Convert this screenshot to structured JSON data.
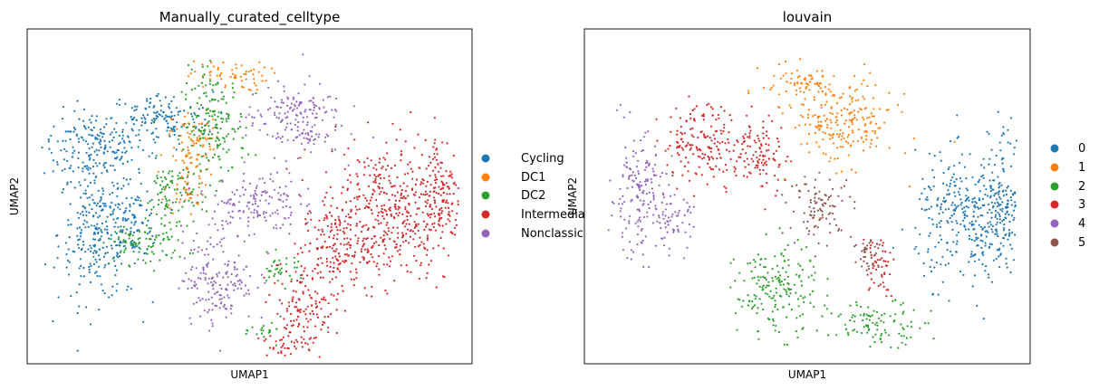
{
  "charts": [
    {
      "title": "Manually_curated_celltype",
      "xlabel": "UMAP1",
      "ylabel": "UMAP2",
      "legend_entries": [
        {
          "label": "Cycling",
          "color": "#1f77b4"
        },
        {
          "label": "DC1",
          "color": "#ff7f0e"
        },
        {
          "label": "DC2",
          "color": "#2ca02c"
        },
        {
          "label": "Intermediate",
          "color": "#d62728"
        },
        {
          "label": "Nonclassical",
          "color": "#9467bd"
        }
      ]
    },
    {
      "title": "louvain",
      "xlabel": "UMAP1",
      "ylabel": "UMAP2",
      "legend_entries": [
        {
          "label": "0",
          "color": "#1f77b4"
        },
        {
          "label": "1",
          "color": "#ff7f0e"
        },
        {
          "label": "2",
          "color": "#2ca02c"
        },
        {
          "label": "3",
          "color": "#d62728"
        },
        {
          "label": "4",
          "color": "#9467bd"
        },
        {
          "label": "5",
          "color": "#8c564b"
        }
      ]
    }
  ],
  "chart_data": [
    {
      "type": "scatter",
      "title": "Manually_curated_celltype",
      "xlabel": "UMAP1",
      "ylabel": "UMAP2",
      "axis_ticks": false,
      "grid": false,
      "legend_placement": "right",
      "series": [
        {
          "name": "Cycling",
          "color": "#1f77b4",
          "regions": [
            [
              1.5,
              6.5,
              1.3,
              1.2
            ],
            [
              1.6,
              3.9,
              1.0,
              2.3
            ],
            [
              2.4,
              4.2,
              0.6,
              1.1
            ],
            [
              3.0,
              7.3,
              1.3,
              0.9
            ]
          ]
        },
        {
          "name": "DC1",
          "color": "#ff7f0e",
          "regions": [
            [
              3.6,
              5.6,
              0.5,
              1.3
            ],
            [
              4.5,
              8.6,
              1.0,
              0.5
            ],
            [
              3.8,
              6.8,
              0.6,
              0.8
            ]
          ]
        },
        {
          "name": "DC2",
          "color": "#2ca02c",
          "regions": [
            [
              2.6,
              3.6,
              1.1,
              0.7
            ],
            [
              4.2,
              7.1,
              0.8,
              1.8
            ],
            [
              3.2,
              5.0,
              0.6,
              1.2
            ],
            [
              5.7,
              2.8,
              0.6,
              0.5
            ],
            [
              5.4,
              1.0,
              0.4,
              0.4
            ]
          ]
        },
        {
          "name": "Intermediate",
          "color": "#d62728",
          "regions": [
            [
              8.0,
              4.5,
              1.6,
              2.3
            ],
            [
              9.3,
              5.0,
              0.6,
              2.1
            ],
            [
              6.2,
              1.6,
              0.8,
              1.4
            ],
            [
              6.9,
              3.4,
              0.8,
              1.3
            ],
            [
              5.7,
              0.5,
              0.5,
              0.4
            ]
          ]
        },
        {
          "name": "Nonclassical",
          "color": "#9467bd",
          "regions": [
            [
              6.0,
              7.3,
              1.2,
              1.2
            ],
            [
              4.3,
              2.6,
              0.9,
              1.6
            ],
            [
              5.1,
              4.8,
              1.1,
              1.1
            ]
          ]
        }
      ]
    },
    {
      "type": "scatter",
      "title": "louvain",
      "xlabel": "UMAP1",
      "ylabel": "UMAP2",
      "axis_ticks": false,
      "grid": false,
      "legend_placement": "right",
      "series": [
        {
          "name": "0",
          "color": "#1f77b4",
          "regions": [
            [
              8.6,
              4.3,
              1.3,
              2.1
            ],
            [
              9.4,
              5.0,
              0.5,
              2.2
            ]
          ]
        },
        {
          "name": "1",
          "color": "#ff7f0e",
          "regions": [
            [
              5.8,
              7.2,
              1.3,
              1.4
            ],
            [
              4.8,
              8.4,
              0.9,
              0.6
            ]
          ]
        },
        {
          "name": "2",
          "color": "#2ca02c",
          "regions": [
            [
              4.3,
              2.2,
              1.0,
              1.5
            ],
            [
              6.6,
              1.2,
              1.2,
              0.7
            ]
          ]
        },
        {
          "name": "3",
          "color": "#d62728",
          "regions": [
            [
              2.8,
              6.6,
              1.2,
              1.3
            ],
            [
              4.0,
              6.2,
              0.6,
              1.2
            ],
            [
              6.6,
              3.0,
              0.4,
              1.0
            ]
          ]
        },
        {
          "name": "4",
          "color": "#9467bd",
          "regions": [
            [
              1.2,
              5.0,
              0.7,
              2.0
            ],
            [
              2.0,
              4.2,
              0.5,
              0.9
            ]
          ]
        },
        {
          "name": "5",
          "color": "#8c564b",
          "regions": [
            [
              5.3,
              4.7,
              0.8,
              1.0
            ],
            [
              6.4,
              3.2,
              0.4,
              0.8
            ]
          ]
        }
      ]
    }
  ]
}
